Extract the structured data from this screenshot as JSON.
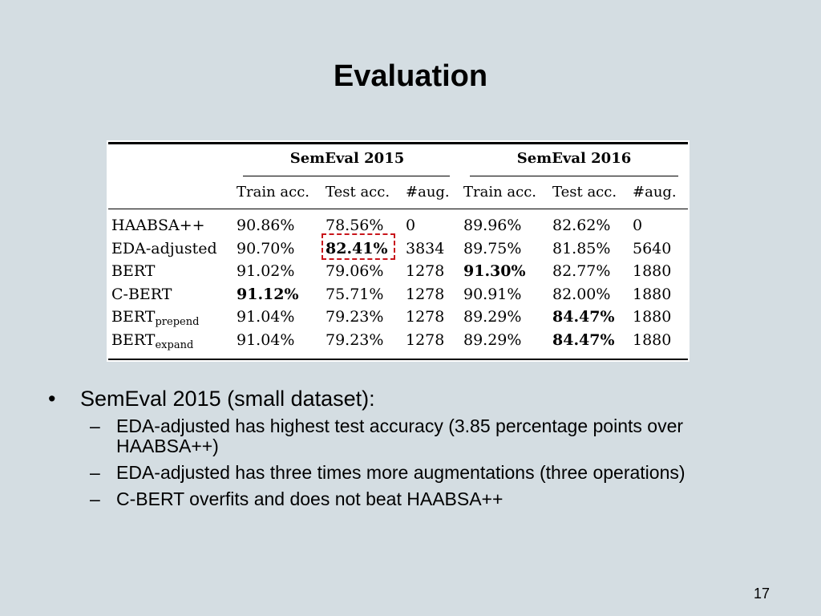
{
  "title": "Evaluation",
  "table": {
    "groups": [
      "SemEval 2015",
      "SemEval 2016"
    ],
    "columns": [
      "Train acc.",
      "Test acc.",
      "#aug.",
      "Train acc.",
      "Test acc.",
      "#aug."
    ],
    "rows": [
      {
        "label": "HAABSA++",
        "sub": "",
        "cells": [
          "90.86%",
          "78.56%",
          "0",
          "89.96%",
          "82.62%",
          "0"
        ],
        "bold": [
          false,
          false,
          false,
          false,
          false,
          false
        ]
      },
      {
        "label": "EDA-adjusted",
        "sub": "",
        "cells": [
          "90.70%",
          "82.41%",
          "3834",
          "89.75%",
          "81.85%",
          "5640"
        ],
        "bold": [
          false,
          true,
          false,
          false,
          false,
          false
        ]
      },
      {
        "label": "BERT",
        "sub": "",
        "cells": [
          "91.02%",
          "79.06%",
          "1278",
          "91.30%",
          "82.77%",
          "1880"
        ],
        "bold": [
          false,
          false,
          false,
          true,
          false,
          false
        ]
      },
      {
        "label": "C-BERT",
        "sub": "",
        "cells": [
          "91.12%",
          "75.71%",
          "1278",
          "90.91%",
          "82.00%",
          "1880"
        ],
        "bold": [
          true,
          false,
          false,
          false,
          false,
          false
        ]
      },
      {
        "label": "BERT",
        "sub": "prepend",
        "cells": [
          "91.04%",
          "79.23%",
          "1278",
          "89.29%",
          "84.47%",
          "1880"
        ],
        "bold": [
          false,
          false,
          false,
          false,
          true,
          false
        ]
      },
      {
        "label": "BERT",
        "sub": "expand",
        "cells": [
          "91.04%",
          "79.23%",
          "1278",
          "89.29%",
          "84.47%",
          "1880"
        ],
        "bold": [
          false,
          false,
          false,
          false,
          true,
          false
        ]
      }
    ]
  },
  "bullet": {
    "marker": "•",
    "text": "SemEval 2015 (small dataset):",
    "items": [
      "EDA-adjusted has highest test accuracy (3.85 percentage points over HAABSA++)",
      "EDA-adjusted has three times more augmentations (three operations)",
      "C-BERT overfits and does not beat HAABSA++"
    ],
    "item_marker": "–"
  },
  "page_number": "17"
}
